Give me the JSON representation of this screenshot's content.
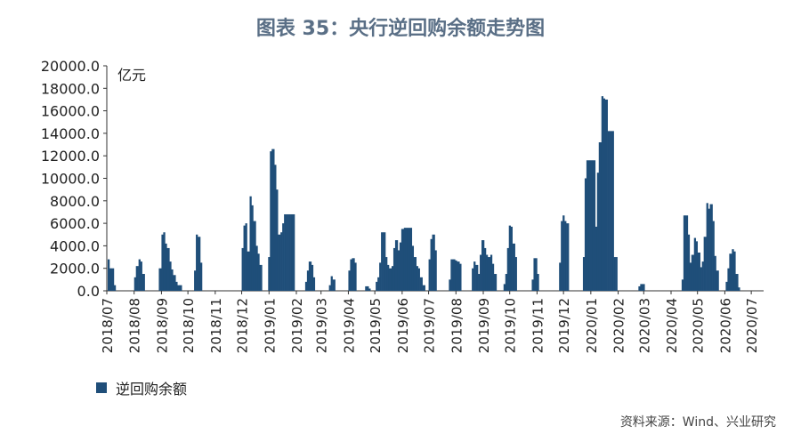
{
  "chart_data": {
    "type": "bar",
    "title": "图表 35：央行逆回购余额走势图",
    "ylabel": "亿元",
    "ylim": [
      0,
      20000
    ],
    "yticks": [
      "0.0",
      "2000.0",
      "4000.0",
      "6000.0",
      "8000.0",
      "10000.0",
      "12000.0",
      "14000.0",
      "16000.0",
      "18000.0",
      "20000.0"
    ],
    "xticks": [
      "2018/07",
      "2018/08",
      "2018/09",
      "2018/10",
      "2018/11",
      "2018/12",
      "2019/01",
      "2019/02",
      "2019/03",
      "2019/04",
      "2019/05",
      "2019/06",
      "2019/07",
      "2019/08",
      "2019/09",
      "2019/10",
      "2019/11",
      "2019/12",
      "2020/01",
      "2020/02",
      "2020/03",
      "2020/04",
      "2020/05",
      "2020/06",
      "2020/07"
    ],
    "series": [
      {
        "name": "逆回购余额",
        "color": "#1f4e79",
        "points": [
          [
            "2018/07/02",
            2800
          ],
          [
            "2018/07/04",
            2000
          ],
          [
            "2018/07/06",
            2000
          ],
          [
            "2018/07/09",
            500
          ],
          [
            "2018/07/11",
            0
          ],
          [
            "2018/08/01",
            1200
          ],
          [
            "2018/08/03",
            2200
          ],
          [
            "2018/08/06",
            2800
          ],
          [
            "2018/08/08",
            2600
          ],
          [
            "2018/08/10",
            1500
          ],
          [
            "2018/08/13",
            0
          ],
          [
            "2018/08/29",
            2000
          ],
          [
            "2018/09/01",
            5000
          ],
          [
            "2018/09/03",
            5200
          ],
          [
            "2018/09/05",
            4200
          ],
          [
            "2018/09/07",
            3800
          ],
          [
            "2018/09/10",
            2600
          ],
          [
            "2018/09/12",
            1900
          ],
          [
            "2018/09/14",
            1400
          ],
          [
            "2018/09/17",
            800
          ],
          [
            "2018/09/19",
            500
          ],
          [
            "2018/09/21",
            500
          ],
          [
            "2018/09/24",
            0
          ],
          [
            "2018/10/08",
            1800
          ],
          [
            "2018/10/10",
            5000
          ],
          [
            "2018/10/12",
            4800
          ],
          [
            "2018/10/15",
            2500
          ],
          [
            "2018/10/17",
            0
          ],
          [
            "2018/12/01",
            3800
          ],
          [
            "2018/12/03",
            5800
          ],
          [
            "2018/12/05",
            6000
          ],
          [
            "2018/12/07",
            3500
          ],
          [
            "2018/12/10",
            8400
          ],
          [
            "2018/12/12",
            7600
          ],
          [
            "2018/12/14",
            6200
          ],
          [
            "2018/12/17",
            4000
          ],
          [
            "2018/12/19",
            3300
          ],
          [
            "2018/12/21",
            2300
          ],
          [
            "2018/12/24",
            0
          ],
          [
            "2018/12/31",
            3000
          ],
          [
            "2019/01/02",
            12400
          ],
          [
            "2019/01/04",
            12600
          ],
          [
            "2019/01/07",
            11200
          ],
          [
            "2019/01/09",
            9000
          ],
          [
            "2019/01/11",
            5000
          ],
          [
            "2019/01/14",
            5200
          ],
          [
            "2019/01/16",
            6000
          ],
          [
            "2019/01/18",
            6800
          ],
          [
            "2019/01/21",
            6800
          ],
          [
            "2019/01/23",
            6800
          ],
          [
            "2019/01/25",
            6800
          ],
          [
            "2019/01/28",
            6800
          ],
          [
            "2019/01/30",
            0
          ],
          [
            "2019/02/11",
            800
          ],
          [
            "2019/02/13",
            1800
          ],
          [
            "2019/02/15",
            2600
          ],
          [
            "2019/02/18",
            2300
          ],
          [
            "2019/02/20",
            1200
          ],
          [
            "2019/02/22",
            0
          ],
          [
            "2019/03/10",
            500
          ],
          [
            "2019/03/12",
            1300
          ],
          [
            "2019/03/14",
            1000
          ],
          [
            "2019/03/17",
            0
          ],
          [
            "2019/04/01",
            1800
          ],
          [
            "2019/04/03",
            2800
          ],
          [
            "2019/04/05",
            2900
          ],
          [
            "2019/04/08",
            2500
          ],
          [
            "2019/04/10",
            0
          ],
          [
            "2019/04/20",
            400
          ],
          [
            "2019/04/22",
            400
          ],
          [
            "2019/04/24",
            200
          ],
          [
            "2019/04/26",
            0
          ],
          [
            "2019/05/02",
            800
          ],
          [
            "2019/05/04",
            1200
          ],
          [
            "2019/05/06",
            2500
          ],
          [
            "2019/05/08",
            5200
          ],
          [
            "2019/05/10",
            5200
          ],
          [
            "2019/05/13",
            3000
          ],
          [
            "2019/05/15",
            2300
          ],
          [
            "2019/05/17",
            2000
          ],
          [
            "2019/05/20",
            2200
          ],
          [
            "2019/05/22",
            3800
          ],
          [
            "2019/05/24",
            4500
          ],
          [
            "2019/05/27",
            3600
          ],
          [
            "2019/05/29",
            4300
          ],
          [
            "2019/05/31",
            5500
          ],
          [
            "2019/06/03",
            5600
          ],
          [
            "2019/06/05",
            5600
          ],
          [
            "2019/06/07",
            5600
          ],
          [
            "2019/06/10",
            5600
          ],
          [
            "2019/06/12",
            4000
          ],
          [
            "2019/06/14",
            3000
          ],
          [
            "2019/06/17",
            2200
          ],
          [
            "2019/06/19",
            2000
          ],
          [
            "2019/06/21",
            1200
          ],
          [
            "2019/06/24",
            500
          ],
          [
            "2019/07/01",
            2800
          ],
          [
            "2019/07/03",
            4600
          ],
          [
            "2019/07/05",
            5000
          ],
          [
            "2019/07/08",
            3600
          ],
          [
            "2019/07/10",
            0
          ],
          [
            "2019/07/24",
            1000
          ],
          [
            "2019/07/26",
            2800
          ],
          [
            "2019/07/29",
            2800
          ],
          [
            "2019/07/31",
            2700
          ],
          [
            "2019/08/02",
            2600
          ],
          [
            "2019/08/05",
            2400
          ],
          [
            "2019/08/07",
            0
          ],
          [
            "2019/08/19",
            2000
          ],
          [
            "2019/08/21",
            2600
          ],
          [
            "2019/08/23",
            2300
          ],
          [
            "2019/08/26",
            1500
          ],
          [
            "2019/08/28",
            3200
          ],
          [
            "2019/08/30",
            4500
          ],
          [
            "2019/09/02",
            3800
          ],
          [
            "2019/09/04",
            3200
          ],
          [
            "2019/09/06",
            3000
          ],
          [
            "2019/09/09",
            3200
          ],
          [
            "2019/09/11",
            2400
          ],
          [
            "2019/09/13",
            1500
          ],
          [
            "2019/09/16",
            0
          ],
          [
            "2019/09/24",
            600
          ],
          [
            "2019/09/26",
            1500
          ],
          [
            "2019/09/28",
            3800
          ],
          [
            "2019/09/30",
            5800
          ],
          [
            "2019/10/02",
            5700
          ],
          [
            "2019/10/04",
            4200
          ],
          [
            "2019/10/07",
            3000
          ],
          [
            "2019/10/09",
            0
          ],
          [
            "2019/10/26",
            1000
          ],
          [
            "2019/10/28",
            2900
          ],
          [
            "2019/10/30",
            2900
          ],
          [
            "2019/11/01",
            1500
          ],
          [
            "2019/11/03",
            0
          ],
          [
            "2019/11/26",
            2500
          ],
          [
            "2019/11/28",
            6200
          ],
          [
            "2019/11/30",
            6700
          ],
          [
            "2019/12/02",
            6200
          ],
          [
            "2019/12/04",
            6000
          ],
          [
            "2019/12/07",
            0
          ],
          [
            "2019/12/23",
            3000
          ],
          [
            "2019/12/25",
            10000
          ],
          [
            "2019/12/27",
            11600
          ],
          [
            "2019/12/30",
            11600
          ],
          [
            "2020/01/01",
            11600
          ],
          [
            "2020/01/03",
            11600
          ],
          [
            "2020/01/06",
            5700
          ],
          [
            "2020/01/08",
            10500
          ],
          [
            "2020/01/10",
            13200
          ],
          [
            "2020/01/13",
            17300
          ],
          [
            "2020/01/15",
            17100
          ],
          [
            "2020/01/17",
            17000
          ],
          [
            "2020/01/20",
            14200
          ],
          [
            "2020/01/22",
            14200
          ],
          [
            "2020/01/24",
            14200
          ],
          [
            "2020/01/27",
            3000
          ],
          [
            "2020/01/29",
            3000
          ],
          [
            "2020/01/31",
            0
          ],
          [
            "2020/02/24",
            400
          ],
          [
            "2020/02/26",
            600
          ],
          [
            "2020/02/28",
            600
          ],
          [
            "2020/03/02",
            0
          ],
          [
            "2020/04/13",
            1000
          ],
          [
            "2020/04/15",
            6700
          ],
          [
            "2020/04/17",
            6700
          ],
          [
            "2020/04/20",
            5000
          ],
          [
            "2020/04/22",
            2500
          ],
          [
            "2020/04/24",
            3200
          ],
          [
            "2020/04/27",
            4700
          ],
          [
            "2020/04/29",
            4400
          ],
          [
            "2020/05/01",
            3400
          ],
          [
            "2020/05/04",
            2100
          ],
          [
            "2020/05/06",
            2600
          ],
          [
            "2020/05/08",
            4800
          ],
          [
            "2020/05/11",
            7800
          ],
          [
            "2020/05/13",
            7300
          ],
          [
            "2020/05/15",
            7700
          ],
          [
            "2020/05/18",
            6200
          ],
          [
            "2020/05/20",
            3100
          ],
          [
            "2020/05/22",
            1800
          ],
          [
            "2020/05/25",
            0
          ],
          [
            "2020/06/02",
            800
          ],
          [
            "2020/06/04",
            2000
          ],
          [
            "2020/06/06",
            3300
          ],
          [
            "2020/06/09",
            3700
          ],
          [
            "2020/06/11",
            3500
          ],
          [
            "2020/06/13",
            1500
          ],
          [
            "2020/06/16",
            300
          ]
        ]
      }
    ]
  },
  "source": "资料来源：Wind、兴业研究"
}
